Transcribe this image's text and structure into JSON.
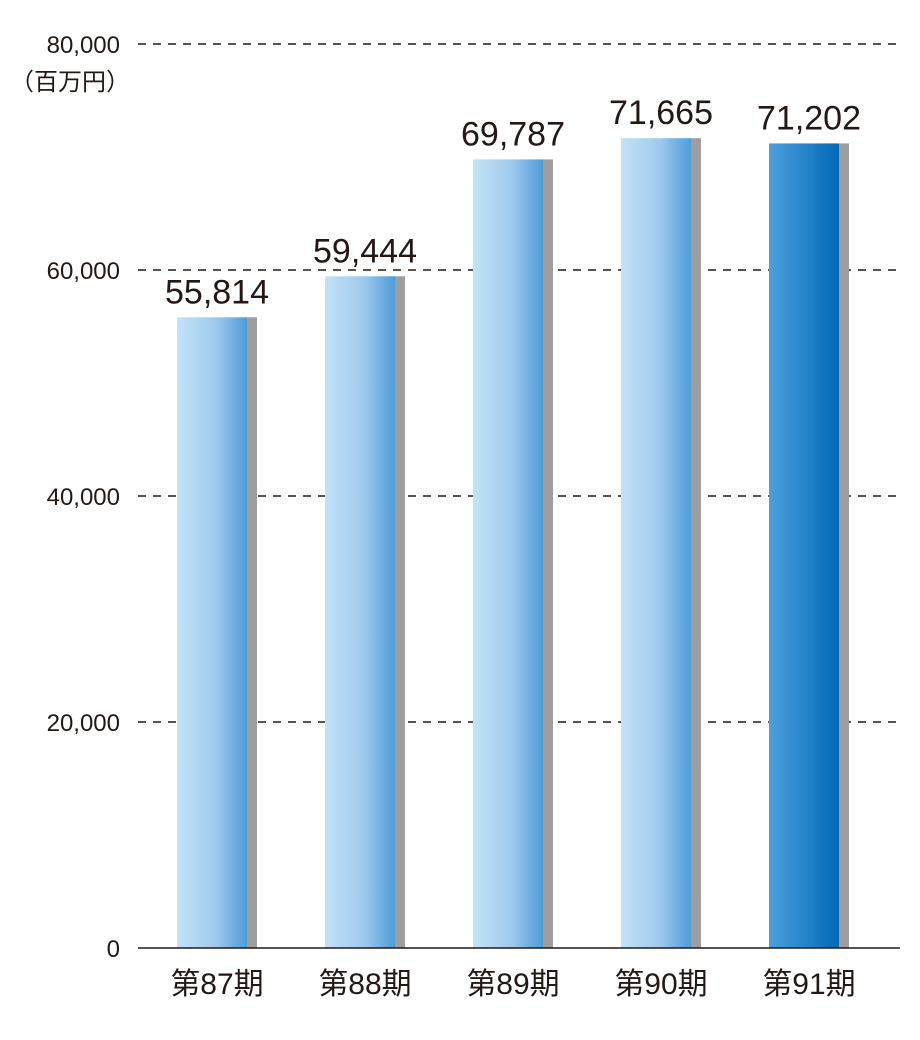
{
  "chart_data": {
    "type": "bar",
    "unit": "（百万円）",
    "categories": [
      "第87期",
      "第88期",
      "第89期",
      "第90期",
      "第91期"
    ],
    "values": [
      55814,
      59444,
      69787,
      71665,
      71202
    ],
    "value_labels": [
      "55,814",
      "59,444",
      "69,787",
      "71,665",
      "71,202"
    ],
    "ylim": [
      0,
      80000
    ],
    "yticks": [
      0,
      20000,
      40000,
      60000,
      80000
    ],
    "ytick_labels": [
      "0",
      "20,000",
      "40,000",
      "60,000",
      "80,000"
    ],
    "grid": true,
    "highlight_index": 4,
    "colors": {
      "bar_light": "#b9dcf5",
      "bar_mid": "#4f9cd9",
      "bar_highlight_left": "#4e9fdd",
      "bar_highlight_right": "#0069b7",
      "shadow": "#9e9e9f"
    }
  }
}
